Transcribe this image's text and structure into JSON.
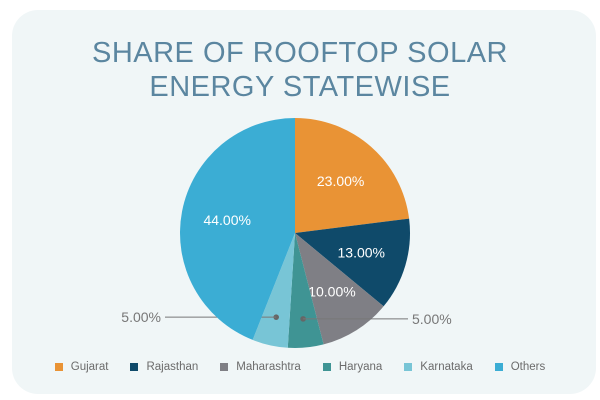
{
  "chart_data": {
    "type": "pie",
    "title": "SHARE OF ROOFTOP SOLAR ENERGY STATEWISE",
    "title_lines": [
      "SHARE OF ROOFTOP SOLAR",
      "ENERGY STATEWISE"
    ],
    "start_angle": "12 o'clock, clockwise",
    "legend_position": "bottom",
    "slices": [
      {
        "name": "Gujarat",
        "value": 23,
        "label": "23.00%",
        "color": "#e99335",
        "label_position": "inside"
      },
      {
        "name": "Rajasthan",
        "value": 13,
        "label": "13.00%",
        "color": "#0f4a6a",
        "label_position": "inside"
      },
      {
        "name": "Maharashtra",
        "value": 10,
        "label": "10.00%",
        "color": "#7f7f85",
        "label_position": "inside"
      },
      {
        "name": "Haryana",
        "value": 5,
        "label": "5.00%",
        "color": "#3f9494",
        "label_position": "outside-right"
      },
      {
        "name": "Karnataka",
        "value": 5,
        "label": "5.00%",
        "color": "#78c5d6",
        "label_position": "outside-left"
      },
      {
        "name": "Others",
        "value": 44,
        "label": "44.00%",
        "color": "#3badd4",
        "label_position": "inside"
      }
    ]
  }
}
